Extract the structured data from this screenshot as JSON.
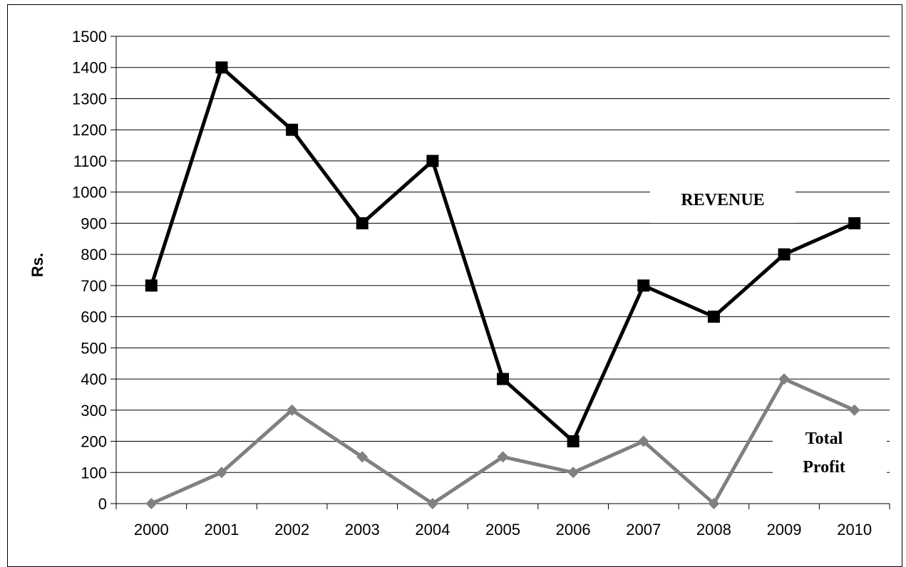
{
  "chart_data": {
    "type": "line",
    "categories": [
      "2000",
      "2001",
      "2002",
      "2003",
      "2004",
      "2005",
      "2006",
      "2007",
      "2008",
      "2009",
      "2010"
    ],
    "series": [
      {
        "name": "REVENUE",
        "values": [
          700,
          1400,
          1200,
          900,
          1100,
          400,
          200,
          700,
          600,
          800,
          900
        ],
        "color": "#000000",
        "marker": "square"
      },
      {
        "name": "Total Profit",
        "values": [
          0,
          100,
          300,
          150,
          0,
          150,
          100,
          200,
          0,
          400,
          300
        ],
        "color": "#808080",
        "marker": "diamond"
      }
    ],
    "ylabel": "Rs.",
    "xlabel": "",
    "ylim": [
      0,
      1500
    ],
    "yticks": [
      0,
      100,
      200,
      300,
      400,
      500,
      600,
      700,
      800,
      900,
      1000,
      1100,
      1200,
      1300,
      1400,
      1500
    ],
    "grid": true,
    "labels": {
      "revenue": "REVENUE",
      "profit_line1": "Total",
      "profit_line2": "Profit"
    }
  }
}
